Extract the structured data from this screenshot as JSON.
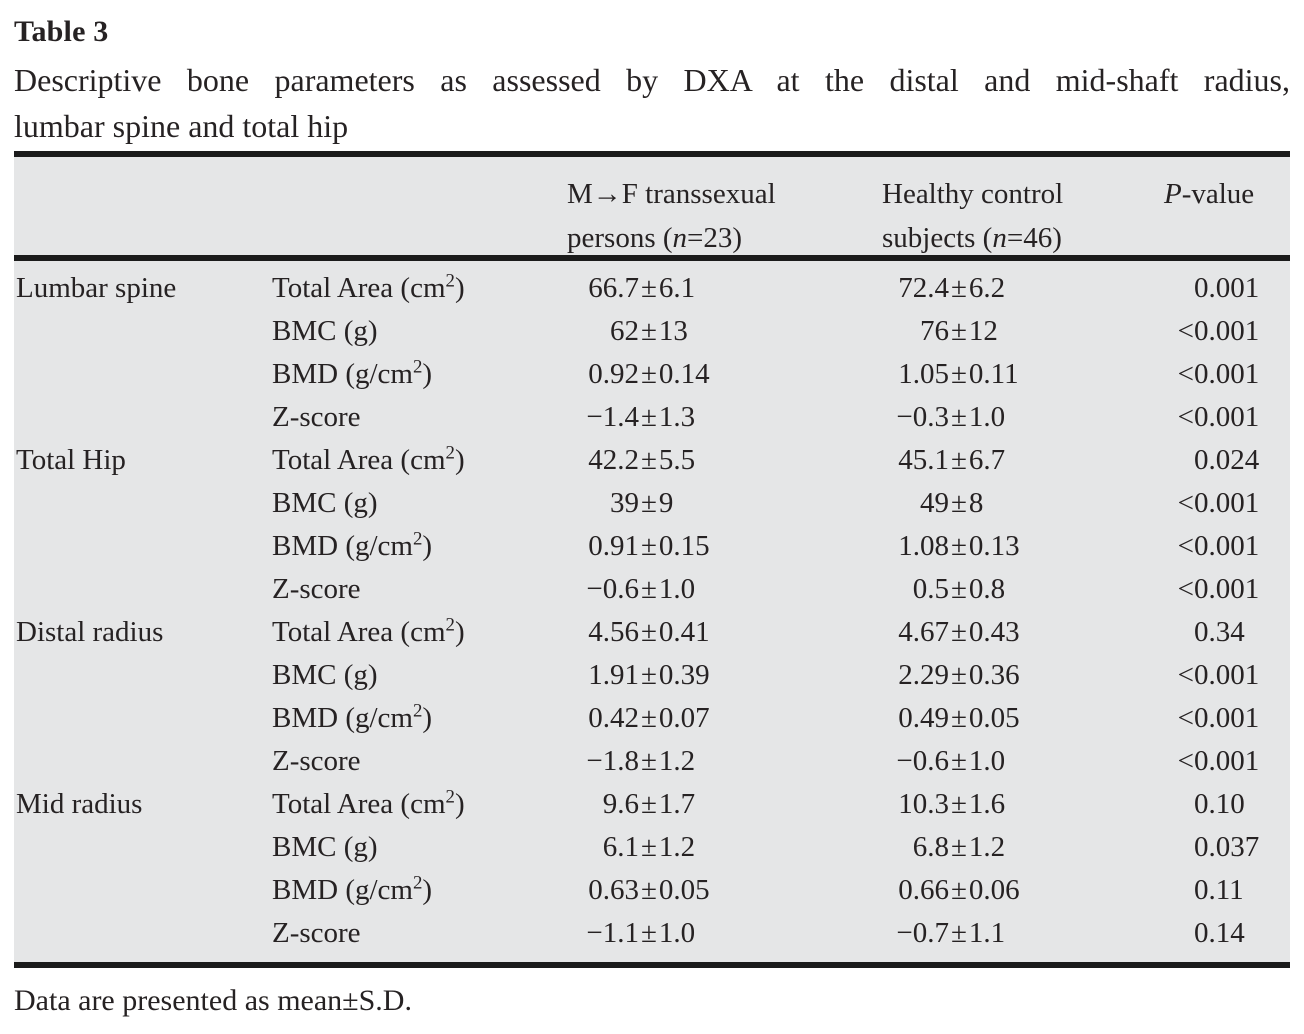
{
  "title": {
    "label": "Table 3"
  },
  "caption": {
    "line1": "Descriptive bone parameters as assessed by DXA at the distal and mid-shaft radius,",
    "line2": "lumbar spine and total hip"
  },
  "table": {
    "header": {
      "mtf": "M→F transsexual\npersons (*n*=23)",
      "control": "Healthy control\nsubjects (*n*=46)",
      "p": "*P*-value"
    },
    "rows": [
      {
        "site": "Lumbar spine",
        "parameter": "Total Area (cm^2)",
        "mtf": "66.7±6.1",
        "control": "72.4±6.2",
        "p": "0.001"
      },
      {
        "site": "",
        "parameter": "BMC (g)",
        "mtf": "62±13",
        "control": "76±12",
        "p": "<0.001"
      },
      {
        "site": "",
        "parameter": "BMD (g/cm^2)",
        "mtf": "0.92±0.14",
        "control": "1.05±0.11",
        "p": "<0.001"
      },
      {
        "site": "",
        "parameter": "Z-score",
        "mtf": "−1.4±1.3",
        "control": "−0.3±1.0",
        "p": "<0.001"
      },
      {
        "site": "Total Hip",
        "parameter": "Total Area (cm^2)",
        "mtf": "42.2±5.5",
        "control": "45.1±6.7",
        "p": "0.024"
      },
      {
        "site": "",
        "parameter": "BMC (g)",
        "mtf": "39±9",
        "control": "49±8",
        "p": "<0.001"
      },
      {
        "site": "",
        "parameter": "BMD (g/cm^2)",
        "mtf": "0.91±0.15",
        "control": "1.08±0.13",
        "p": "<0.001"
      },
      {
        "site": "",
        "parameter": "Z-score",
        "mtf": "−0.6±1.0",
        "control": "0.5±0.8",
        "p": "<0.001"
      },
      {
        "site": "Distal radius",
        "parameter": "Total Area (cm^2)",
        "mtf": "4.56±0.41",
        "control": "4.67±0.43",
        "p": "0.34"
      },
      {
        "site": "",
        "parameter": "BMC (g)",
        "mtf": "1.91±0.39",
        "control": "2.29±0.36",
        "p": "<0.001"
      },
      {
        "site": "",
        "parameter": "BMD (g/cm^2)",
        "mtf": "0.42±0.07",
        "control": "0.49±0.05",
        "p": "<0.001"
      },
      {
        "site": "",
        "parameter": "Z-score",
        "mtf": "−1.8±1.2",
        "control": "−0.6±1.0",
        "p": "<0.001"
      },
      {
        "site": "Mid radius",
        "parameter": "Total Area (cm^2)",
        "mtf": "9.6±1.7",
        "control": "10.3±1.6",
        "p": "0.10"
      },
      {
        "site": "",
        "parameter": "BMC (g)",
        "mtf": "6.1±1.2",
        "control": "6.8±1.2",
        "p": "0.037"
      },
      {
        "site": "",
        "parameter": "BMD (g/cm^2)",
        "mtf": "0.63±0.05",
        "control": "0.66±0.06",
        "p": "0.11"
      },
      {
        "site": "",
        "parameter": "Z-score",
        "mtf": "−1.1±1.0",
        "control": "−0.7±1.1",
        "p": "0.14"
      }
    ]
  },
  "footnote": {
    "text": "Data are presented as mean±S.D."
  },
  "colors": {
    "table_background": "#e5e6e7",
    "rule": "#1b1b1b",
    "text": "#262223",
    "page_background": "#ffffff"
  }
}
